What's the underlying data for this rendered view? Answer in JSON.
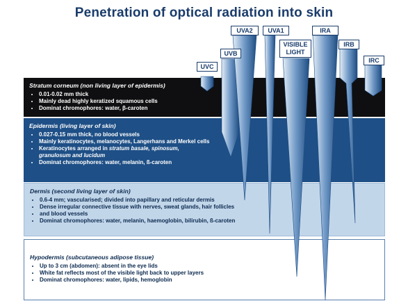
{
  "title": "Penetration of optical radiation into skin",
  "bands": [
    {
      "name": "UVC",
      "depth": "stratum-corneum"
    },
    {
      "name": "UVB",
      "depth": "epidermis"
    },
    {
      "name": "UVA2",
      "depth": "dermis"
    },
    {
      "name": "UVA1",
      "depth": "dermis"
    },
    {
      "name": "VISIBLE LIGHT",
      "depth": "hypodermis"
    },
    {
      "name": "IRA",
      "depth": "hypodermis"
    },
    {
      "name": "IRB",
      "depth": "dermis"
    },
    {
      "name": "IRC",
      "depth": "stratum-corneum"
    }
  ],
  "layers": {
    "stratum_corneum": {
      "title": "Stratum corneum (non living layer of epidermis)",
      "items": [
        "0.01-0.02 mm thick",
        "Mainly dead highly keratized squamous cells",
        "Dominat chromophores: water, β-caroten"
      ]
    },
    "epidermis": {
      "title": "Epidermis (living layer of skin)",
      "items": [
        "0.027-0.15 mm thick, no blood vessels",
        "Mainly keratinocytes, melanocytes, Langerhans and Merkel cells",
        "Dominat chromophores: water, melanin, ß-caroten"
      ],
      "item_keratinocytes": {
        "a": "Keratinocytes arranged in ",
        "b": "stratum basale, spinosum,",
        "c": "granulosum and lucidum"
      }
    },
    "dermis": {
      "title": "Dermis (second living layer of skin)",
      "items": [
        "0.6-4 mm; vascularised; divided into papillary and reticular dermis",
        "Dense irregular connective tissue with nerves, sweat glands, hair follicles",
        "and blood vessels",
        "Dominat chromophores: water, melanin, haemoglobin, bilirubin, ß-caroten"
      ]
    },
    "hypodermis": {
      "title": "Hypodermis (subcutaneous adipose tissue)",
      "items": [
        "Up to 3 cm (abdomen): absent in the eye lids",
        "White fat reflects most of the visible light back to upper layers",
        "Dominat chromophores: water, lipids, hemoglobin"
      ]
    }
  },
  "colors": {
    "title": "#1a3c6b",
    "stratum_corneum_bg": "#0f0f11",
    "epidermis_bg": "#1e4f86",
    "dermis_bg": "#c2d6ea",
    "hypodermis_bg": "#ffffff",
    "beam_dark": "#1f4d82",
    "beam_light": "#e3edf6"
  }
}
